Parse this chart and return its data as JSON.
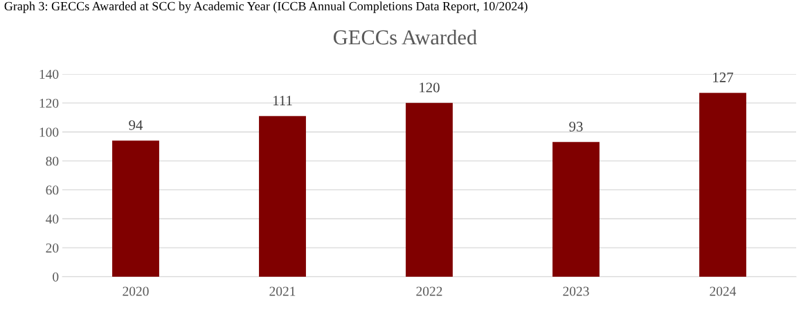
{
  "chart_data": {
    "type": "bar",
    "title": "GECCs Awarded",
    "annotations": [
      "Graph 3: GECCs Awarded at SCC by Academic Year (ICCB Annual Completions Data Report, 10/2024)"
    ],
    "categories": [
      "2020",
      "2021",
      "2022",
      "2023",
      "2024"
    ],
    "values": [
      94,
      111,
      120,
      93,
      127
    ],
    "color": "#800000",
    "ylim": [
      0,
      140
    ],
    "yticks": [
      0,
      20,
      40,
      60,
      80,
      100,
      120,
      140
    ],
    "grid": "y",
    "data_labels": true,
    "legend": false
  }
}
